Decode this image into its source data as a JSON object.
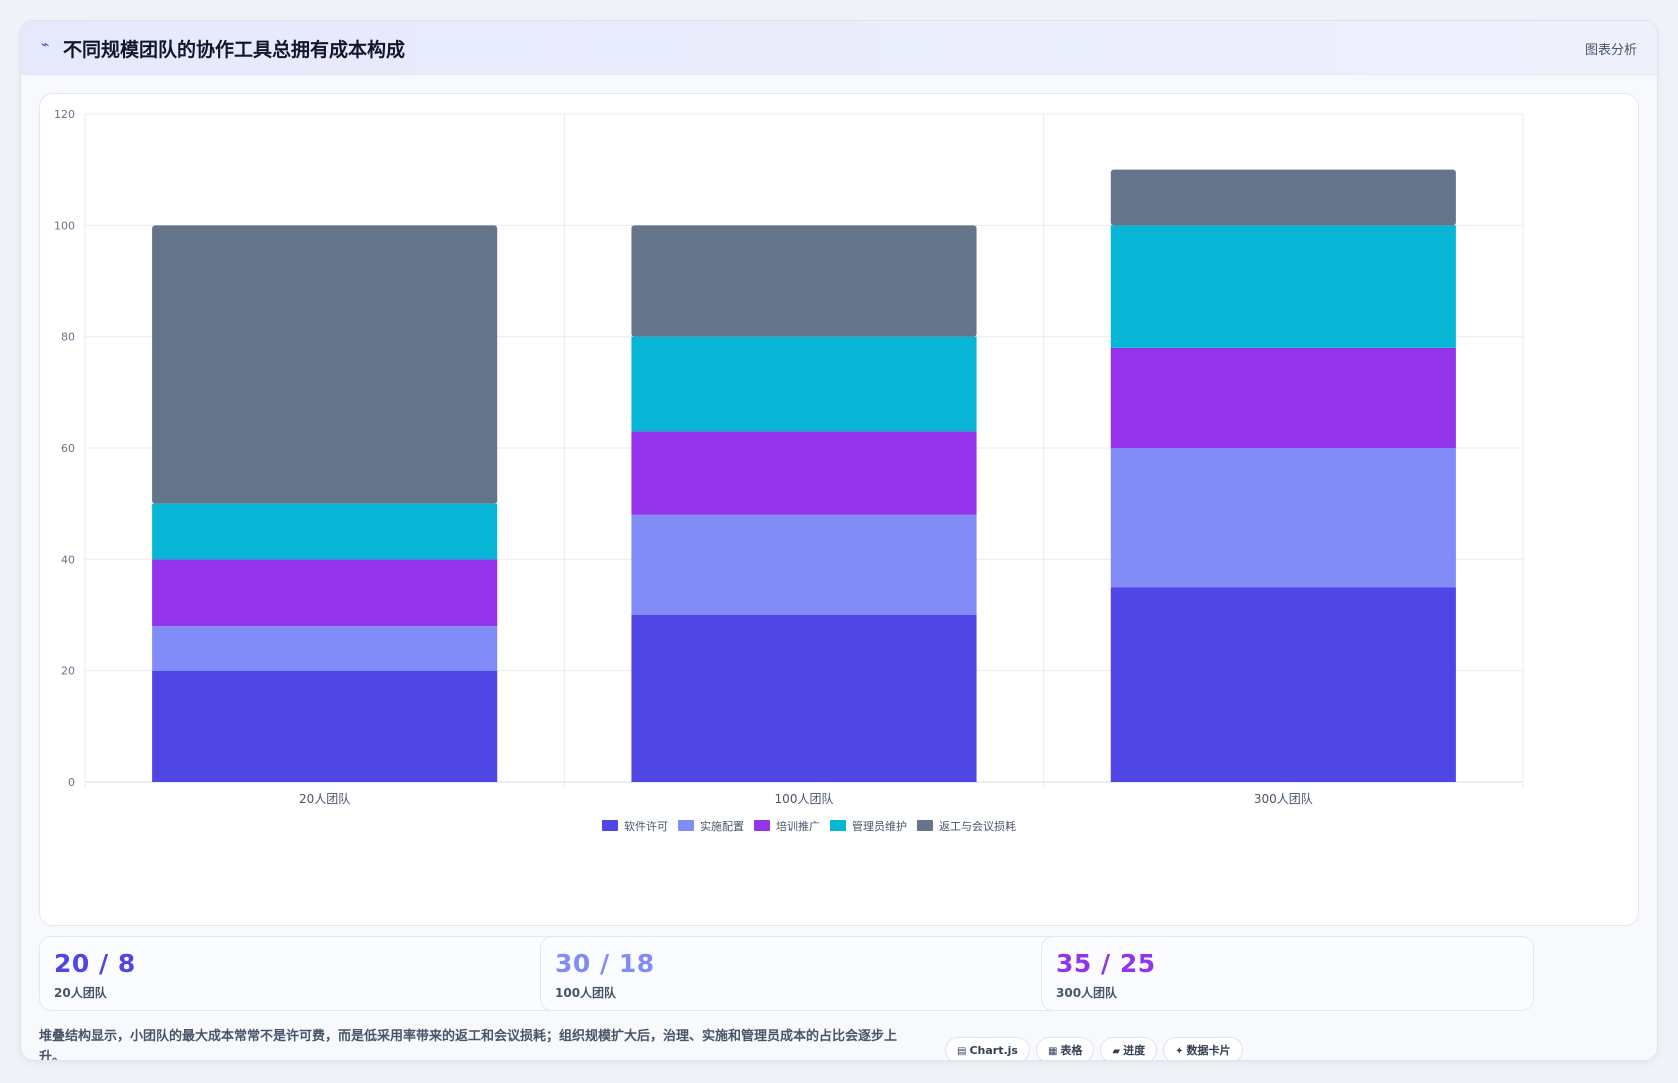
{
  "header": {
    "icon": "trend-icon",
    "title": "不同规模团队的协作工具总拥有成本构成",
    "action_label": "图表分析"
  },
  "chart_data": {
    "type": "bar",
    "stacked": true,
    "categories": [
      "20人团队",
      "100人团队",
      "300人团队"
    ],
    "series": [
      {
        "name": "软件许可",
        "color": "#4f46e5",
        "values": [
          20,
          30,
          35
        ]
      },
      {
        "name": "实施配置",
        "color": "#818cf8",
        "values": [
          8,
          18,
          25
        ]
      },
      {
        "name": "培训推广",
        "color": "#9333ea",
        "values": [
          12,
          15,
          18
        ]
      },
      {
        "name": "管理员维护",
        "color": "#06b6d4",
        "values": [
          10,
          17,
          22
        ]
      },
      {
        "name": "返工与会议损耗",
        "color": "#64748b",
        "values": [
          50,
          20,
          10
        ]
      }
    ],
    "ylim": [
      0,
      120
    ],
    "yticks": [
      0,
      20,
      40,
      60,
      80,
      100,
      120
    ],
    "grid": true,
    "legend_position": "bottom"
  },
  "stats": [
    {
      "value": "20 / 8",
      "label": "20人团队",
      "color": "#4f46e5"
    },
    {
      "value": "30 / 18",
      "label": "100人团队",
      "color": "#818cf8"
    },
    {
      "value": "35 / 25",
      "label": "300人团队",
      "color": "#9333ea"
    }
  ],
  "note": "堆叠结构显示，小团队的最大成本常常不是许可费，而是低采用率带来的返工和会议损耗；组织规模扩大后，治理、实施和管理员成本的占比会逐步上升。",
  "tags": [
    {
      "icon": "chart-icon",
      "glyph": "▤",
      "label": "Chart.js"
    },
    {
      "icon": "table-icon",
      "glyph": "▦",
      "label": "表格"
    },
    {
      "icon": "progress-icon",
      "glyph": "▰",
      "label": "进度"
    },
    {
      "icon": "sparkle-icon",
      "glyph": "✦",
      "label": "数据卡片"
    }
  ]
}
